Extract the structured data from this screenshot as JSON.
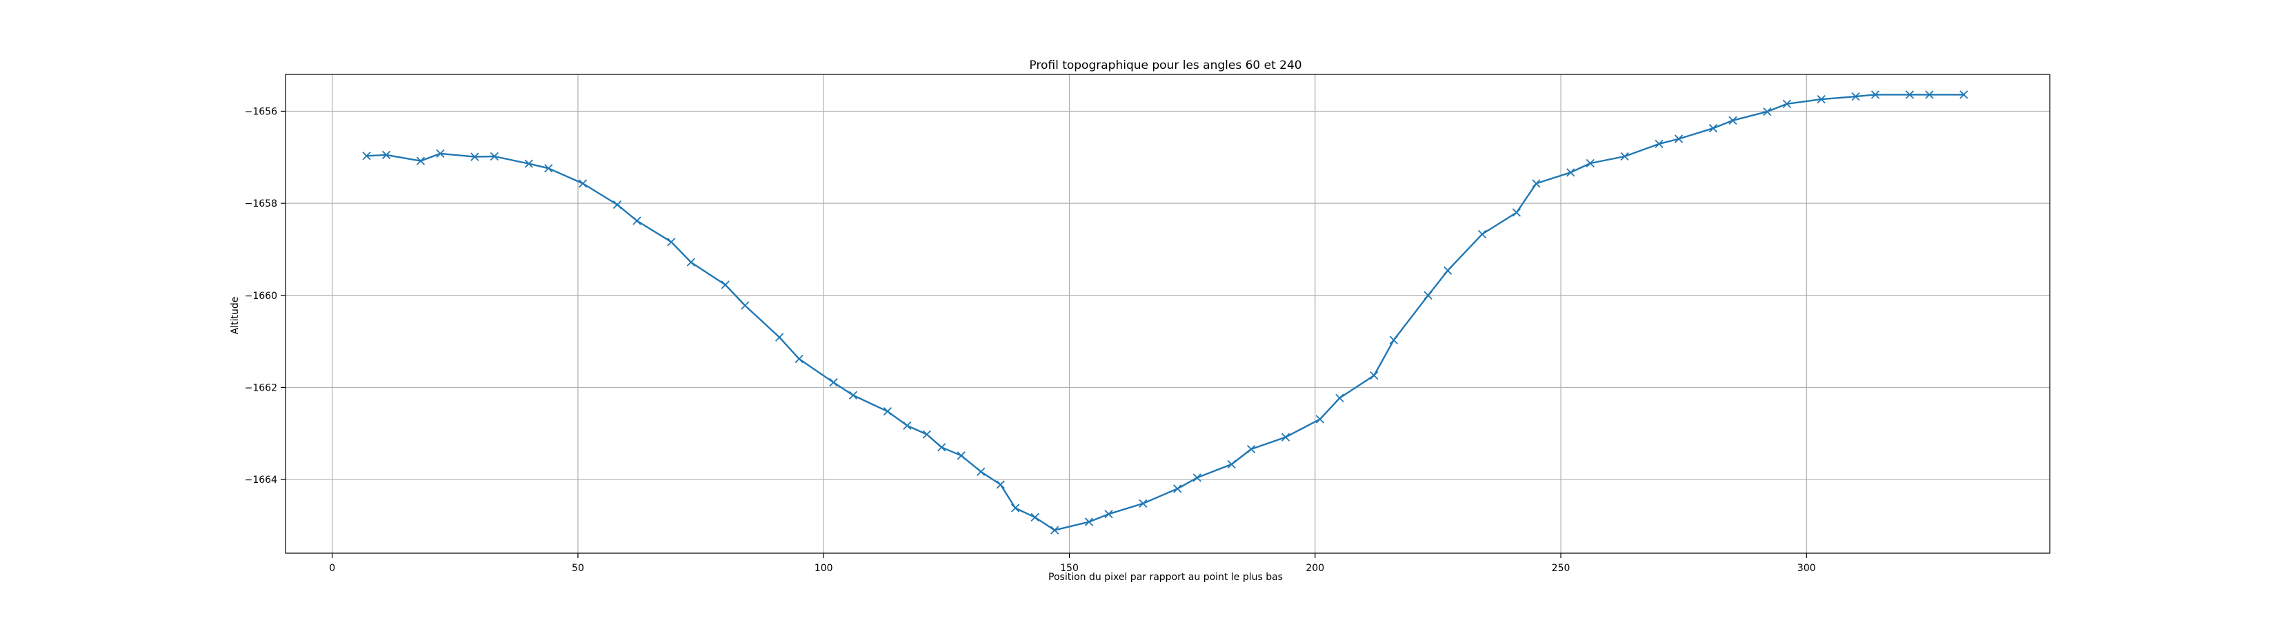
{
  "chart_data": {
    "type": "line",
    "title": "Profil topographique pour les angles 60 et 240",
    "xlabel": "Position du pixel par rapport au point le plus bas",
    "ylabel": "Altitude",
    "xlim": [
      -9.5,
      349.5
    ],
    "ylim": [
      -1665.6,
      -1655.2
    ],
    "xticks": [
      0,
      50,
      100,
      150,
      200,
      250,
      300
    ],
    "yticks": [
      -1664,
      -1662,
      -1660,
      -1658,
      -1656
    ],
    "xtick_labels": [
      "0",
      "50",
      "100",
      "150",
      "200",
      "250",
      "300"
    ],
    "ytick_labels": [
      "−1664",
      "−1662",
      "−1660",
      "−1658",
      "−1656"
    ],
    "grid": true,
    "marker": "x",
    "colors": {
      "line": "#1f77b4",
      "grid": "#b0b0b0",
      "axes": "#000000"
    },
    "series": [
      {
        "x": [
          7,
          11,
          18,
          22,
          29,
          33,
          40,
          44,
          51,
          58,
          62,
          69,
          73,
          80,
          84,
          91,
          95,
          102,
          106,
          113,
          117,
          121,
          124,
          128,
          132,
          136,
          139,
          143,
          147,
          154,
          158,
          165,
          172,
          176,
          183,
          187,
          194,
          201,
          205,
          212,
          216,
          223,
          227,
          234,
          241,
          245,
          252,
          256,
          263,
          270,
          274,
          281,
          285,
          292,
          296,
          303,
          310,
          314,
          321,
          325,
          332
        ],
        "y": [
          -1656.97,
          -1656.95,
          -1657.08,
          -1656.92,
          -1656.99,
          -1656.98,
          -1657.14,
          -1657.24,
          -1657.57,
          -1658.03,
          -1658.38,
          -1658.84,
          -1659.28,
          -1659.77,
          -1660.22,
          -1660.91,
          -1661.38,
          -1661.89,
          -1662.17,
          -1662.52,
          -1662.83,
          -1663.02,
          -1663.3,
          -1663.48,
          -1663.83,
          -1664.11,
          -1664.62,
          -1664.82,
          -1665.1,
          -1664.92,
          -1664.75,
          -1664.52,
          -1664.2,
          -1663.96,
          -1663.67,
          -1663.34,
          -1663.08,
          -1662.69,
          -1662.23,
          -1661.74,
          -1660.97,
          -1660,
          -1659.46,
          -1658.67,
          -1658.2,
          -1657.57,
          -1657.33,
          -1657.13,
          -1656.98,
          -1656.71,
          -1656.6,
          -1656.37,
          -1656.2,
          -1656.01,
          -1655.84,
          -1655.74,
          -1655.68,
          -1655.64,
          -1655.64,
          -1655.64,
          -1655.64
        ]
      }
    ]
  }
}
